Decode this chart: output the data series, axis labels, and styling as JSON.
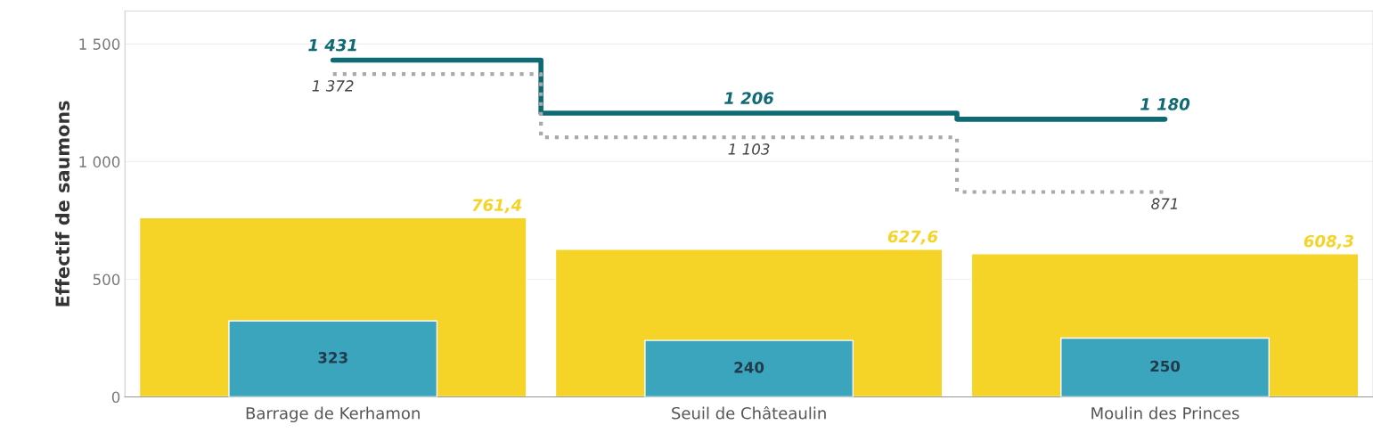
{
  "chart_data": {
    "type": "bar",
    "ylabel": "Effectif de saumons",
    "categories": [
      "Barrage de Kerhamon",
      "Seuil de Châteaulin",
      "Moulin des Princes"
    ],
    "series": [
      {
        "color": "#f5d327",
        "values": [
          761.4,
          627.6,
          608.3
        ],
        "value_labels": [
          "761,4",
          "627,6",
          "608,3"
        ]
      },
      {
        "color": "#3aa5bd",
        "values": [
          323,
          240,
          250
        ],
        "value_labels": [
          "323",
          "240",
          "250"
        ]
      },
      {
        "type": "step",
        "color": "#0e6b73",
        "line_style": "solid",
        "values": [
          1431,
          1206,
          1180
        ],
        "value_labels": [
          "1 431",
          "1 206",
          "1 180"
        ]
      },
      {
        "type": "step",
        "color": "#aaaaaa",
        "line_style": "dotted",
        "values": [
          1372,
          1103,
          871
        ],
        "value_labels": [
          "1 372",
          "1 103",
          "871"
        ]
      }
    ],
    "ylim": [
      0,
      1640
    ],
    "yticks": [
      {
        "value": 0,
        "label": "0"
      },
      {
        "value": 500,
        "label": "500"
      },
      {
        "value": 1000,
        "label": "1 000"
      },
      {
        "value": 1500,
        "label": "1 500"
      }
    ],
    "grid": "y",
    "legend": false
  }
}
